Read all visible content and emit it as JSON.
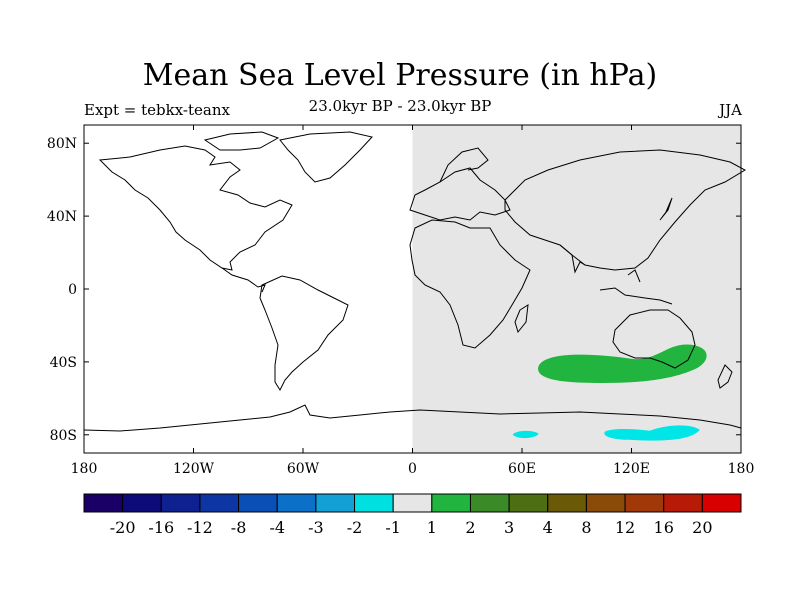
{
  "title": "Mean Sea Level Pressure (in hPa)",
  "subtitle": "23.0kyr BP - 23.0kyr BP",
  "left_label": "Expt = tebkx-teanx",
  "right_label": "JJA",
  "map": {
    "projection": "cylindrical-equidistant",
    "lon_range": [
      -180,
      180
    ],
    "lat_range": [
      -90,
      90
    ],
    "x_ticks": [
      {
        "value": -180,
        "label": "180"
      },
      {
        "value": -120,
        "label": "120W"
      },
      {
        "value": -60,
        "label": "60W"
      },
      {
        "value": 0,
        "label": "0"
      },
      {
        "value": 60,
        "label": "60E"
      },
      {
        "value": 120,
        "label": "120E"
      },
      {
        "value": 180,
        "label": "180"
      }
    ],
    "y_ticks": [
      {
        "value": 80,
        "label": "80N"
      },
      {
        "value": 40,
        "label": "40N"
      },
      {
        "value": 0,
        "label": "0"
      },
      {
        "value": -40,
        "label": "40S"
      },
      {
        "value": -80,
        "label": "80S"
      }
    ],
    "fields": [
      {
        "name": "eastern-hemisphere-shade",
        "lon": [
          0,
          180
        ],
        "lat": [
          -90,
          90
        ],
        "class": "-1 to 1",
        "color": "#e6e6e6"
      },
      {
        "name": "southern-ocean-positive-anomaly",
        "center": [
          110,
          -45
        ],
        "class": "1 to 2",
        "color": "#21b53f"
      },
      {
        "name": "antarctic-negative-anomaly-a",
        "center": [
          62,
          -80
        ],
        "class": "-2 to -1",
        "color": "#00e5e5"
      },
      {
        "name": "antarctic-negative-anomaly-b",
        "center": [
          130,
          -80
        ],
        "class": "-2 to -1",
        "color": "#00e5e5"
      }
    ]
  },
  "colorbar": {
    "colors": [
      "#1a0066",
      "#0d0a7a",
      "#0f2090",
      "#0d35a3",
      "#0a4fb5",
      "#0a70c8",
      "#12a0d5",
      "#00e0e0",
      "#e6e6e6",
      "#21b53f",
      "#3a8a28",
      "#4e6e14",
      "#6a5a08",
      "#8a4a08",
      "#a03808",
      "#b81a08",
      "#d80000"
    ],
    "labels": [
      "-20",
      "-16",
      "-12",
      "-8",
      "-4",
      "-3",
      "-2",
      "-1",
      "1",
      "2",
      "3",
      "4",
      "8",
      "12",
      "16",
      "20"
    ]
  }
}
